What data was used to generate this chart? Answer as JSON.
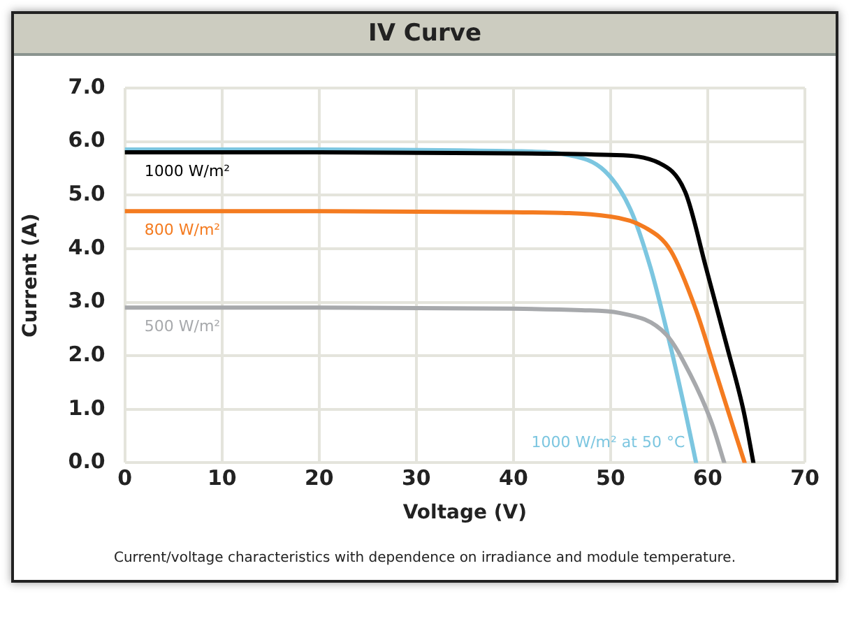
{
  "chart_data": {
    "type": "line",
    "title": "IV Curve",
    "xlabel": "Voltage (V)",
    "ylabel": "Current (A)",
    "xlim": [
      0,
      70
    ],
    "xticks": [
      0,
      10,
      20,
      30,
      40,
      50,
      60,
      70
    ],
    "ylim": [
      0,
      7
    ],
    "yticks": [
      {
        "value": 0,
        "label": "0.0"
      },
      {
        "value": 1,
        "label": "1.0"
      },
      {
        "value": 2,
        "label": "2.0"
      },
      {
        "value": 3,
        "label": "3.0"
      },
      {
        "value": 4,
        "label": "4.0"
      },
      {
        "value": 5,
        "label": "5.0"
      },
      {
        "value": 6,
        "label": "6.0"
      },
      {
        "value": 7,
        "label": "7.0"
      }
    ],
    "grid": true,
    "legend": false,
    "marker": "none",
    "line_style": "solid",
    "series": [
      {
        "name": "1000 W/m²",
        "color": "#000000",
        "x": [
          0,
          20,
          40,
          50,
          55,
          57.7,
          59.8,
          62,
          63.7,
          64.7
        ],
        "values": [
          5.8,
          5.8,
          5.78,
          5.75,
          5.6,
          5.05,
          3.66,
          2.16,
          0.96,
          0
        ]
      },
      {
        "name": "800 W/m²",
        "color": "#f47b20",
        "x": [
          0,
          20,
          40,
          50,
          53.5,
          56.2,
          58.8,
          60.9,
          63,
          63.8
        ],
        "values": [
          4.7,
          4.7,
          4.68,
          4.6,
          4.4,
          3.96,
          2.85,
          1.65,
          0.45,
          0
        ]
      },
      {
        "name": "500 W/m²",
        "color": "#a7a9ac",
        "x": [
          0,
          20,
          40,
          47,
          50.9,
          55.7,
          58.2,
          60.4,
          61.7
        ],
        "values": [
          2.9,
          2.9,
          2.88,
          2.85,
          2.8,
          2.4,
          1.65,
          0.75,
          0
        ]
      },
      {
        "name": "1000 W/m² at 50 °C",
        "color": "#7cc6e0",
        "x": [
          0,
          20,
          40,
          45.6,
          49.4,
          52,
          54.1,
          56.2,
          57.7,
          58.8
        ],
        "values": [
          5.85,
          5.85,
          5.82,
          5.75,
          5.45,
          4.75,
          3.65,
          2.15,
          0.95,
          0
        ]
      }
    ],
    "annotations": [
      "Current/voltage characteristics with dependence on irradiance and module temperature."
    ]
  }
}
